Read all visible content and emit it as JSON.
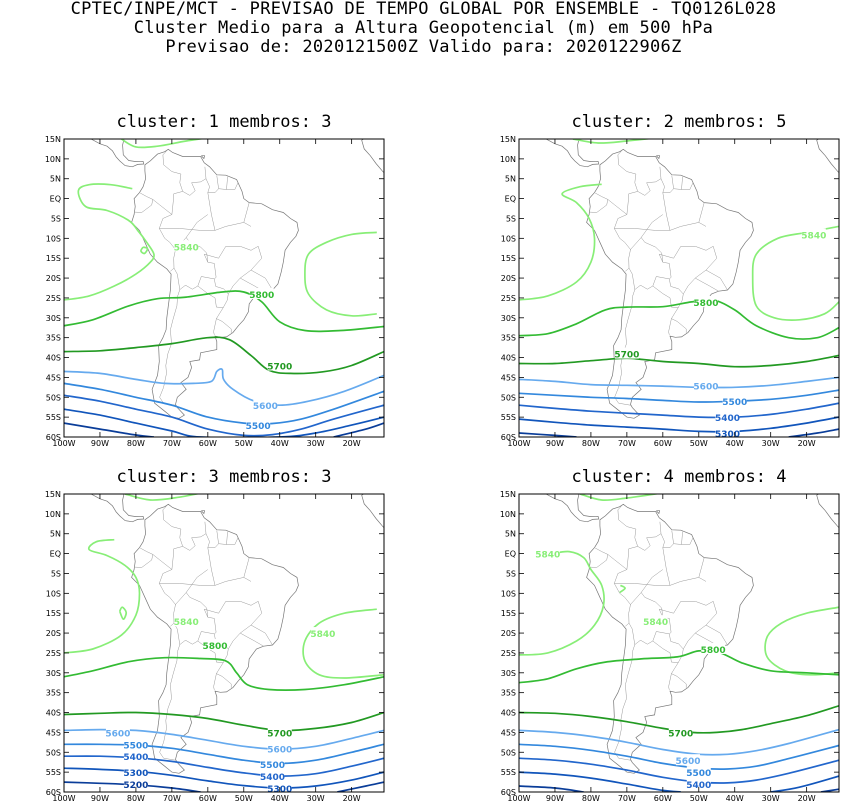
{
  "header": {
    "line1": "CPTEC/INPE/MCT - PREVISAO DE TEMPO GLOBAL POR ENSEMBLE - TQ0126L028",
    "line2": "Cluster Medio para a Altura Geopotencial (m) em 500 hPa",
    "line3": "Previsao de: 2020121500Z   Valido para: 2020122906Z"
  },
  "axes": {
    "lat_labels": [
      "15N",
      "10N",
      "5N",
      "EQ",
      "5S",
      "10S",
      "15S",
      "20S",
      "25S",
      "30S",
      "35S",
      "40S",
      "45S",
      "50S",
      "55S",
      "60S"
    ],
    "lon_labels": [
      "100W",
      "90W",
      "80W",
      "70W",
      "60W",
      "50W",
      "40W",
      "30W",
      "20W"
    ]
  },
  "colors": {
    "c5840": "#88ee77",
    "c5800": "#33bb33",
    "c5700": "#229922",
    "c5600": "#66aaee",
    "c5500": "#3388dd",
    "c5400": "#2266cc",
    "c5300": "#1155bb",
    "c5200": "#0a3d99",
    "coast": "#777777"
  },
  "panels": [
    {
      "title": "cluster: 1   membros: 3",
      "contours": [
        {
          "level": "5840",
          "color": "c5840",
          "label": "5840",
          "lon": -66,
          "lat": -12
        },
        {
          "level": "5800",
          "color": "c5800",
          "label": "5800",
          "lon": -45,
          "lat": -24
        },
        {
          "level": "5700",
          "color": "c5700",
          "label": "5700",
          "lon": -40,
          "lat": -42
        },
        {
          "level": "5600",
          "color": "c5600",
          "label": "5600",
          "lon": -44,
          "lat": -52
        },
        {
          "level": "5500",
          "color": "c5500",
          "label": "5500",
          "lon": -46,
          "lat": -57
        }
      ]
    },
    {
      "title": "cluster: 2   membros: 5",
      "contours": [
        {
          "level": "5840",
          "color": "c5840",
          "label": "5840",
          "lon": -18,
          "lat": -9
        },
        {
          "level": "5800",
          "color": "c5800",
          "label": "5800",
          "lon": -48,
          "lat": -26
        },
        {
          "level": "5700",
          "color": "c5700",
          "label": "5700",
          "lon": -70,
          "lat": -39
        },
        {
          "level": "5600",
          "color": "c5600",
          "label": "5600",
          "lon": -48,
          "lat": -47
        },
        {
          "level": "5500",
          "color": "c5500",
          "label": "5500",
          "lon": -40,
          "lat": -51
        },
        {
          "level": "5400",
          "color": "c5400",
          "label": "5400",
          "lon": -42,
          "lat": -55
        },
        {
          "level": "5300",
          "color": "c5300",
          "label": "5300",
          "lon": -42,
          "lat": -59
        }
      ]
    },
    {
      "title": "cluster: 3   membros: 3",
      "contours": [
        {
          "level": "5840",
          "color": "c5840",
          "label": "5840",
          "lon": -28,
          "lat": -20
        },
        {
          "level": "5800",
          "color": "c5800",
          "label": "5800",
          "lon": -58,
          "lat": -23
        },
        {
          "level": "5700",
          "color": "c5700",
          "label": "5700",
          "lon": -40,
          "lat": -45
        },
        {
          "level": "5600",
          "color": "c5600",
          "label": "5600",
          "lon": -40,
          "lat": -49
        },
        {
          "level": "5500",
          "color": "c5500",
          "label": "5500",
          "lon": -42,
          "lat": -53
        },
        {
          "level": "5400",
          "color": "c5400",
          "label": "5400",
          "lon": -42,
          "lat": -56
        },
        {
          "level": "5300",
          "color": "c5300",
          "label": "5300",
          "lon": -40,
          "lat": -59
        }
      ],
      "side_labels": [
        {
          "text": "5600",
          "color": "c5600",
          "lon": -85,
          "lat": -45
        },
        {
          "text": "5500",
          "color": "c5500",
          "lon": -80,
          "lat": -48
        },
        {
          "text": "5400",
          "color": "c5400",
          "lon": -80,
          "lat": -51
        },
        {
          "text": "5300",
          "color": "c5300",
          "lon": -80,
          "lat": -55
        },
        {
          "text": "5200",
          "color": "c5200",
          "lon": -80,
          "lat": -58
        },
        {
          "text": "5840",
          "color": "c5840",
          "lon": -66,
          "lat": -17
        }
      ]
    },
    {
      "title": "cluster: 4   membros: 4",
      "contours": [
        {
          "level": "5840",
          "color": "c5840",
          "label": "5840",
          "lon": -92,
          "lat": 0
        },
        {
          "level": "5800",
          "color": "c5800",
          "label": "5800",
          "lon": -46,
          "lat": -24
        },
        {
          "level": "5700",
          "color": "c5700",
          "label": "5700",
          "lon": -55,
          "lat": -45
        },
        {
          "level": "5600",
          "color": "c5600",
          "label": "5600",
          "lon": -53,
          "lat": -52
        },
        {
          "level": "5500",
          "color": "c5500",
          "label": "5500",
          "lon": -50,
          "lat": -55
        },
        {
          "level": "5400",
          "color": "c5400",
          "label": "5400",
          "lon": -50,
          "lat": -58
        }
      ],
      "side_labels": [
        {
          "text": "5840",
          "color": "c5840",
          "lon": -62,
          "lat": -17
        }
      ]
    }
  ]
}
